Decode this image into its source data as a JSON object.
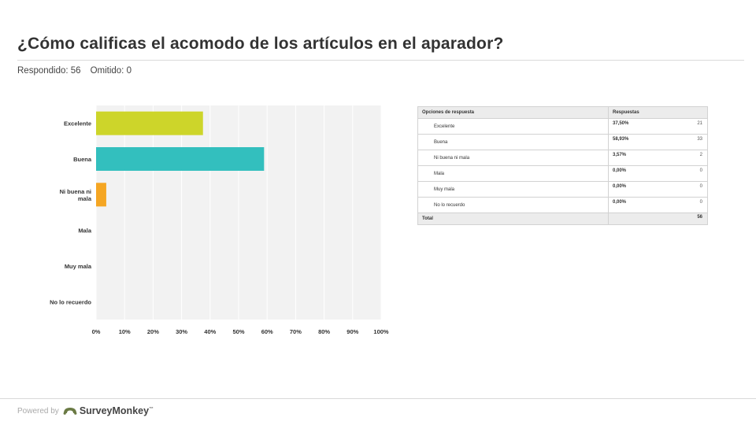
{
  "header": {
    "title": "¿Cómo calificas el acomodo de los artículos en el aparador?",
    "answered_label": "Respondido: 56",
    "skipped_label": "Omitido: 0"
  },
  "chart_data": {
    "type": "bar",
    "orientation": "horizontal",
    "categories": [
      "Excelente",
      "Buena",
      "Ni buena ni mala",
      "Mala",
      "Muy mala",
      "No lo recuerdo"
    ],
    "category_labels": [
      [
        "Excelente"
      ],
      [
        "Buena"
      ],
      [
        "Ni buena ni",
        "mala"
      ],
      [
        "Mala"
      ],
      [
        "Muy mala"
      ],
      [
        "No lo recuerdo"
      ]
    ],
    "values": [
      37.5,
      58.93,
      3.57,
      0,
      0,
      0
    ],
    "colors": [
      "#cdd52a",
      "#33bfbe",
      "#f5a623",
      "#cccccc",
      "#cccccc",
      "#cccccc"
    ],
    "xlim": [
      0,
      100
    ],
    "xticks": [
      "0%",
      "10%",
      "20%",
      "30%",
      "40%",
      "50%",
      "60%",
      "70%",
      "80%",
      "90%",
      "100%"
    ],
    "grid": true,
    "background": "#f2f2f2"
  },
  "table": {
    "headers": [
      "Opciones de respuesta",
      "Respuestas"
    ],
    "rows": [
      {
        "option": "Excelente",
        "percent": "37,50%",
        "count": "21"
      },
      {
        "option": "Buena",
        "percent": "58,93%",
        "count": "33"
      },
      {
        "option": "Ni buena ni mala",
        "percent": "3,57%",
        "count": "2"
      },
      {
        "option": "Mala",
        "percent": "0,00%",
        "count": "0"
      },
      {
        "option": "Muy mala",
        "percent": "0,00%",
        "count": "0"
      },
      {
        "option": "No lo recuerdo",
        "percent": "0,00%",
        "count": "0"
      }
    ],
    "total_label": "Total",
    "total_count": "56"
  },
  "footer": {
    "powered_by": "Powered by",
    "brand": "SurveyMonkey",
    "brand_icon": "surveymonkey-logo-icon",
    "brand_color": "#6a7a44"
  }
}
